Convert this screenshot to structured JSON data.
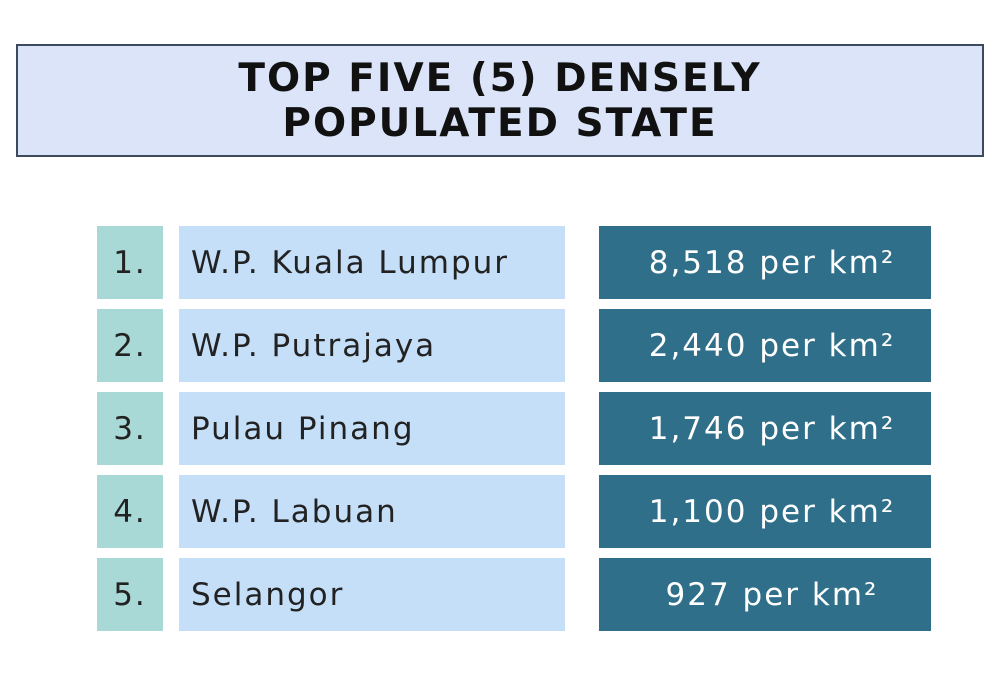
{
  "header": {
    "title": "TOP FIVE (5) DENSELY POPULATED STATE"
  },
  "table": {
    "rows": [
      {
        "rank": "1.",
        "state": "W.P. Kuala Lumpur",
        "density": "8,518 per km²"
      },
      {
        "rank": "2.",
        "state": "W.P. Putrajaya",
        "density": "2,440 per km²"
      },
      {
        "rank": "3.",
        "state": "Pulau Pinang",
        "density": "1,746 per km²"
      },
      {
        "rank": "4.",
        "state": "W.P. Labuan",
        "density": "1,100 per km²"
      },
      {
        "rank": "5.",
        "state": "Selangor",
        "density": "927 per km²"
      }
    ]
  }
}
